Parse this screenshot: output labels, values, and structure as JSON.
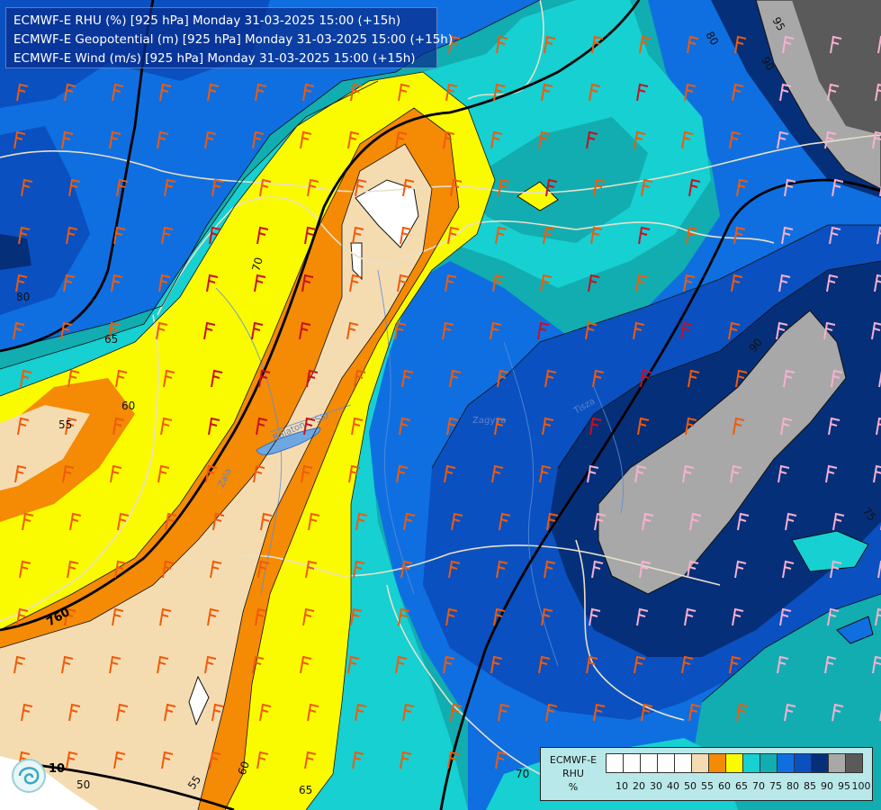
{
  "header": {
    "line1": "ECMWF-E RHU (%) [925 hPa] Monday 31-03-2025 15:00 (+15h)",
    "line2": "ECMWF-E Geopotential (m) [925 hPa] Monday 31-03-2025 15:00 (+15h)",
    "line3": "ECMWF-E Wind (m/s) [925 hPa] Monday 31-03-2025 15:00 (+15h)"
  },
  "legend": {
    "title_line1": "ECMWF-E",
    "title_line2": "RHU",
    "title_line3": "%",
    "colors": [
      "#ffffff",
      "#ffffff",
      "#ffffff",
      "#ffffff",
      "#ffffff",
      "#f5dcb0",
      "#f58a05",
      "#fbfb00",
      "#16d0d2",
      "#12adb0",
      "#0f6fe0",
      "#0a50c0",
      "#062f7a",
      "#a8a8a8",
      "#5a5a5a"
    ],
    "ticks": [
      "10",
      "20",
      "30",
      "40",
      "50",
      "55",
      "60",
      "65",
      "70",
      "75",
      "80",
      "85",
      "90",
      "95",
      "100"
    ]
  },
  "map": {
    "contour_labels": [
      "80",
      "65",
      "60",
      "55",
      "70",
      "70",
      "55",
      "60",
      "65",
      "90",
      "75",
      "80",
      "90",
      "95",
      "50",
      "70"
    ],
    "geopotential_labels": [
      "760",
      "10"
    ],
    "river_labels": [
      "Zala",
      "Balaton",
      "Sio",
      "Tisza",
      "Zagyva"
    ],
    "colors": {
      "rhu_55": "#f5dcb0",
      "rhu_60": "#f58a05",
      "rhu_65": "#fbfb00",
      "rhu_70": "#16d0d2",
      "rhu_75": "#12adb0",
      "rhu_80": "#0f6fe0",
      "rhu_85": "#0a50c0",
      "rhu_90": "#062f7a",
      "rhu_95": "#a8a8a8",
      "rhu_100": "#5a5a5a",
      "wind_strong": "#c8101e",
      "wind_medium": "#f05a0a",
      "wind_weak": "#f8b0d0",
      "border": "#e8e0c8"
    }
  }
}
